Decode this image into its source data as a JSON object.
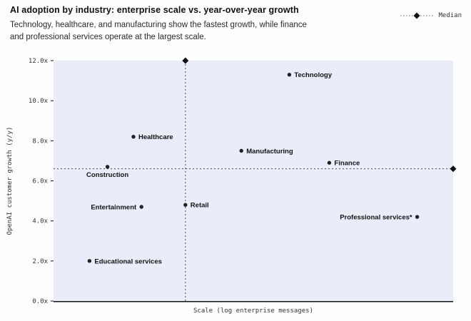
{
  "chart_data": {
    "type": "scatter",
    "title": "AI adoption by industry: enterprise scale vs. year-over-year growth",
    "subtitle_line1": "Technology, healthcare, and manufacturing show the fastest growth, while finance",
    "subtitle_line2": "and professional services operate at the largest scale.",
    "xlabel": "Scale (log enterprise messages)",
    "ylabel": "OpenAI customer growth (y/y)",
    "xlim": [
      0,
      1
    ],
    "ylim": [
      0,
      12
    ],
    "ytick_values": [
      0,
      2,
      4,
      6,
      8,
      10,
      12
    ],
    "ytick_labels": [
      "0.0x",
      "2.0x",
      "4.0x",
      "6.0x",
      "8.0x",
      "10.0x",
      "12.0x"
    ],
    "grid": false,
    "legend_position": "top-right",
    "median": {
      "label": "Median",
      "x_frac": 0.33,
      "y_value": 6.6
    },
    "points": [
      {
        "name": "Technology",
        "x": 0.59,
        "y": 11.3,
        "side": "right"
      },
      {
        "name": "Healthcare",
        "x": 0.2,
        "y": 8.2,
        "side": "right"
      },
      {
        "name": "Manufacturing",
        "x": 0.47,
        "y": 7.5,
        "side": "right"
      },
      {
        "name": "Finance",
        "x": 0.69,
        "y": 6.9,
        "side": "right"
      },
      {
        "name": "Construction",
        "x": 0.135,
        "y": 6.7,
        "side": "below"
      },
      {
        "name": "Retail",
        "x": 0.33,
        "y": 4.8,
        "side": "right"
      },
      {
        "name": "Entertainment",
        "x": 0.22,
        "y": 4.7,
        "side": "left"
      },
      {
        "name": "Professional services*",
        "x": 0.91,
        "y": 4.2,
        "side": "left"
      },
      {
        "name": "Educational services",
        "x": 0.09,
        "y": 2.0,
        "side": "right"
      }
    ],
    "colors": {
      "plot_bg": "#e8edf9",
      "point": "#222222",
      "median_line": "#4a4a4a",
      "axis": "#111111"
    }
  }
}
